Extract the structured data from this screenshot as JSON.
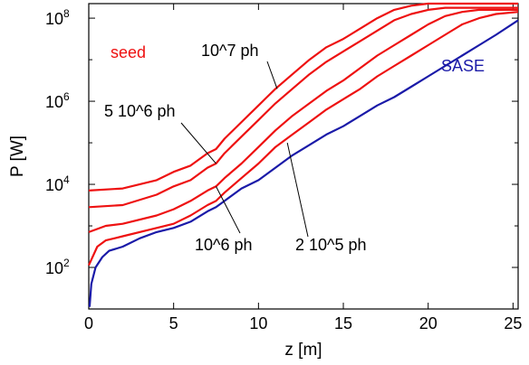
{
  "chart_data": {
    "type": "line",
    "xlabel": "z [m]",
    "ylabel": "P [W]",
    "xlim": [
      0,
      25.3
    ],
    "ylim_log10": [
      1,
      8.35
    ],
    "yscale": "log",
    "grid": false,
    "x_ticks": [
      {
        "v": 0,
        "label": "0"
      },
      {
        "v": 5,
        "label": "5"
      },
      {
        "v": 10,
        "label": "10"
      },
      {
        "v": 15,
        "label": "15"
      },
      {
        "v": 20,
        "label": "20"
      },
      {
        "v": 25,
        "label": "25"
      }
    ],
    "y_ticks": [
      {
        "exp": 2,
        "base": "10",
        "sup": "2"
      },
      {
        "exp": 4,
        "base": "10",
        "sup": "4"
      },
      {
        "exp": 6,
        "base": "10",
        "sup": "6"
      },
      {
        "exp": 8,
        "base": "10",
        "sup": "8"
      }
    ],
    "series": [
      {
        "name": "10^7 ph",
        "color": "#ee1111",
        "x": [
          0,
          2,
          4,
          5,
          6,
          7,
          7.5,
          8,
          9,
          10,
          10.5,
          11,
          12,
          13,
          14,
          15,
          16,
          17,
          18,
          19,
          20,
          21,
          22,
          23,
          24,
          25.3
        ],
        "log10y": [
          3.85,
          3.9,
          4.1,
          4.3,
          4.45,
          4.75,
          4.85,
          5.1,
          5.5,
          5.9,
          6.1,
          6.3,
          6.65,
          7.0,
          7.3,
          7.5,
          7.75,
          8.0,
          8.2,
          8.3,
          8.35,
          8.35,
          8.35,
          8.35,
          8.35,
          8.35
        ]
      },
      {
        "name": "5 10^6 ph",
        "color": "#ee1111",
        "x": [
          0,
          2,
          4,
          5,
          6,
          7,
          7.5,
          8,
          9,
          10,
          10.5,
          11,
          12,
          13,
          14,
          15,
          16,
          17,
          18,
          19,
          20,
          21,
          22,
          23,
          24,
          25.3
        ],
        "log10y": [
          3.45,
          3.5,
          3.75,
          3.95,
          4.1,
          4.4,
          4.5,
          4.75,
          5.15,
          5.55,
          5.75,
          5.95,
          6.3,
          6.65,
          6.95,
          7.2,
          7.45,
          7.7,
          7.95,
          8.1,
          8.2,
          8.25,
          8.25,
          8.25,
          8.25,
          8.25
        ]
      },
      {
        "name": "10^6 ph",
        "color": "#ee1111",
        "x": [
          0,
          1,
          2,
          4,
          5,
          6,
          7,
          7.5,
          8,
          9,
          10,
          11,
          12,
          13,
          14,
          15,
          16,
          17,
          18,
          19,
          20,
          21,
          22,
          23,
          24,
          25.3
        ],
        "log10y": [
          2.85,
          3.0,
          3.05,
          3.25,
          3.4,
          3.6,
          3.85,
          3.95,
          4.15,
          4.5,
          4.9,
          5.3,
          5.65,
          5.95,
          6.25,
          6.5,
          6.8,
          7.1,
          7.35,
          7.6,
          7.85,
          8.05,
          8.15,
          8.2,
          8.2,
          8.2
        ]
      },
      {
        "name": "2 10^5 ph",
        "color": "#ee1111",
        "x": [
          0,
          0.5,
          1,
          2,
          4,
          5,
          6,
          7,
          7.5,
          8,
          9,
          10,
          11,
          12,
          13,
          14,
          15,
          16,
          17,
          18,
          19,
          20,
          21,
          22,
          23,
          24,
          25.3
        ],
        "log10y": [
          2.05,
          2.5,
          2.65,
          2.75,
          2.95,
          3.05,
          3.25,
          3.5,
          3.6,
          3.8,
          4.15,
          4.5,
          4.9,
          5.2,
          5.5,
          5.8,
          6.05,
          6.3,
          6.6,
          6.85,
          7.1,
          7.35,
          7.6,
          7.85,
          8.0,
          8.1,
          8.15
        ]
      },
      {
        "name": "SASE",
        "color": "#1a1aa8",
        "x": [
          0.05,
          0.15,
          0.4,
          0.8,
          1.2,
          2,
          3,
          4,
          5,
          6,
          7,
          7.5,
          8,
          9,
          10,
          11,
          12,
          13,
          14,
          15,
          16,
          17,
          18,
          19,
          20,
          21,
          22,
          23,
          24,
          25.3
        ],
        "log10y": [
          1.05,
          1.6,
          2.0,
          2.25,
          2.4,
          2.5,
          2.7,
          2.85,
          2.95,
          3.1,
          3.35,
          3.45,
          3.6,
          3.9,
          4.1,
          4.4,
          4.7,
          4.95,
          5.2,
          5.4,
          5.65,
          5.9,
          6.1,
          6.35,
          6.6,
          6.85,
          7.1,
          7.35,
          7.6,
          7.95
        ]
      }
    ],
    "annotations": {
      "seed": {
        "text": "seed",
        "color": "#ee1111"
      },
      "sase": {
        "text": "SASE",
        "color": "#1a1aa8"
      },
      "ph1e7": {
        "text": "10^7 ph",
        "color": "#000000"
      },
      "ph5e6": {
        "text": "5 10^6 ph",
        "color": "#000000"
      },
      "ph1e6": {
        "text": "10^6 ph",
        "color": "#000000"
      },
      "ph2e5": {
        "text": "2 10^5 ph",
        "color": "#000000"
      }
    }
  }
}
